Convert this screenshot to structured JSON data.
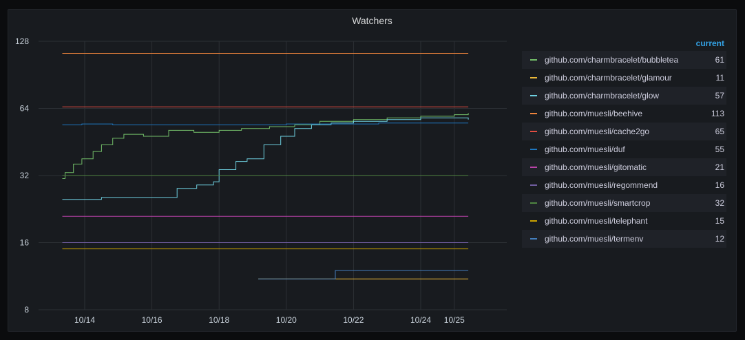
{
  "panel": {
    "title": "Watchers"
  },
  "legend": {
    "column_header": "current"
  },
  "chart_data": {
    "type": "line",
    "title": "Watchers",
    "y_scale": "log2",
    "ylim": [
      8,
      128
    ],
    "y_ticks": [
      "128",
      "64",
      "32",
      "16",
      "8"
    ],
    "y_tick_values": [
      128,
      64,
      32,
      16,
      8
    ],
    "xlim": [
      "2020-10-13",
      "2020-10-25"
    ],
    "x_ticks": [
      "10/14",
      "10/16",
      "10/18",
      "10/20",
      "10/22",
      "10/24",
      "10/25"
    ],
    "grid": true,
    "legend_placement": "right",
    "series": [
      {
        "name": "github.com/charmbracelet/bubbletea",
        "current": "61",
        "color": "#73bf69",
        "x": [
          "2020-10-13 08:00",
          "2020-10-13 10:00",
          "2020-10-13 16:00",
          "2020-10-13 22:00",
          "2020-10-14 06:00",
          "2020-10-14 12:00",
          "2020-10-14 20:00",
          "2020-10-15 04:00",
          "2020-10-15 18:00",
          "2020-10-16 12:00",
          "2020-10-17 06:00",
          "2020-10-18 00:00",
          "2020-10-18 16:00",
          "2020-10-19 12:00",
          "2020-10-20 06:00",
          "2020-10-21 00:00",
          "2020-10-22 00:00",
          "2020-10-23 00:00",
          "2020-10-24 00:00",
          "2020-10-24 18:00",
          "2020-10-25 00:00",
          "2020-10-25 10:00"
        ],
        "y": [
          31,
          33,
          36,
          38,
          41,
          44,
          47,
          49,
          48,
          51,
          50,
          51,
          52,
          53,
          54,
          56,
          57,
          58,
          59,
          59,
          60,
          61
        ]
      },
      {
        "name": "github.com/charmbracelet/glamour",
        "current": "11",
        "color": "#eab839",
        "x": [
          "2020-10-19 04:00",
          "2020-10-25 10:00"
        ],
        "y": [
          11,
          11
        ]
      },
      {
        "name": "github.com/charmbracelet/glow",
        "current": "57",
        "color": "#6ed0e0",
        "x": [
          "2020-10-13 08:00",
          "2020-10-14 12:00",
          "2020-10-16 18:00",
          "2020-10-17 08:00",
          "2020-10-17 20:00",
          "2020-10-18 00:00",
          "2020-10-18 12:00",
          "2020-10-18 20:00",
          "2020-10-19 08:00",
          "2020-10-19 20:00",
          "2020-10-20 06:00",
          "2020-10-20 18:00",
          "2020-10-21 08:00",
          "2020-10-22 00:00",
          "2020-10-23 00:00",
          "2020-10-24 00:00",
          "2020-10-25 00:00",
          "2020-10-25 10:00"
        ],
        "y": [
          25,
          25.5,
          28,
          29,
          30,
          34,
          37,
          38,
          44,
          48,
          52,
          54,
          55,
          56,
          57,
          58,
          58,
          57
        ]
      },
      {
        "name": "github.com/muesli/beehive",
        "current": "113",
        "color": "#ef843c",
        "x": [
          "2020-10-13 08:00",
          "2020-10-25 10:00"
        ],
        "y": [
          113,
          113
        ]
      },
      {
        "name": "github.com/muesli/cache2go",
        "current": "65",
        "color": "#e24d42",
        "x": [
          "2020-10-13 08:00",
          "2020-10-25 10:00"
        ],
        "y": [
          65,
          65
        ]
      },
      {
        "name": "github.com/muesli/duf",
        "current": "55",
        "color": "#1f78c1",
        "x": [
          "2020-10-13 08:00",
          "2020-10-13 22:00",
          "2020-10-14 20:00",
          "2020-10-20 00:00",
          "2020-10-22 18:00",
          "2020-10-25 10:00"
        ],
        "y": [
          54,
          54.5,
          54,
          54.5,
          55,
          55
        ]
      },
      {
        "name": "github.com/muesli/gitomatic",
        "current": "21",
        "color": "#ba43a9",
        "x": [
          "2020-10-13 08:00",
          "2020-10-25 10:00"
        ],
        "y": [
          21,
          21
        ]
      },
      {
        "name": "github.com/muesli/regommend",
        "current": "16",
        "color": "#705da0",
        "x": [
          "2020-10-13 08:00",
          "2020-10-25 10:00"
        ],
        "y": [
          16,
          16
        ]
      },
      {
        "name": "github.com/muesli/smartcrop",
        "current": "32",
        "color": "#508642",
        "x": [
          "2020-10-13 08:00",
          "2020-10-25 10:00"
        ],
        "y": [
          32,
          32
        ]
      },
      {
        "name": "github.com/muesli/telephant",
        "current": "15",
        "color": "#cca300",
        "x": [
          "2020-10-13 08:00",
          "2020-10-25 10:00"
        ],
        "y": [
          15,
          15
        ]
      },
      {
        "name": "github.com/muesli/termenv",
        "current": "12",
        "color": "#447ebc",
        "x": [
          "2020-10-19 04:00",
          "2020-10-21 10:00",
          "2020-10-21 11:00",
          "2020-10-25 10:00"
        ],
        "y": [
          11,
          11,
          12,
          12
        ]
      }
    ]
  }
}
